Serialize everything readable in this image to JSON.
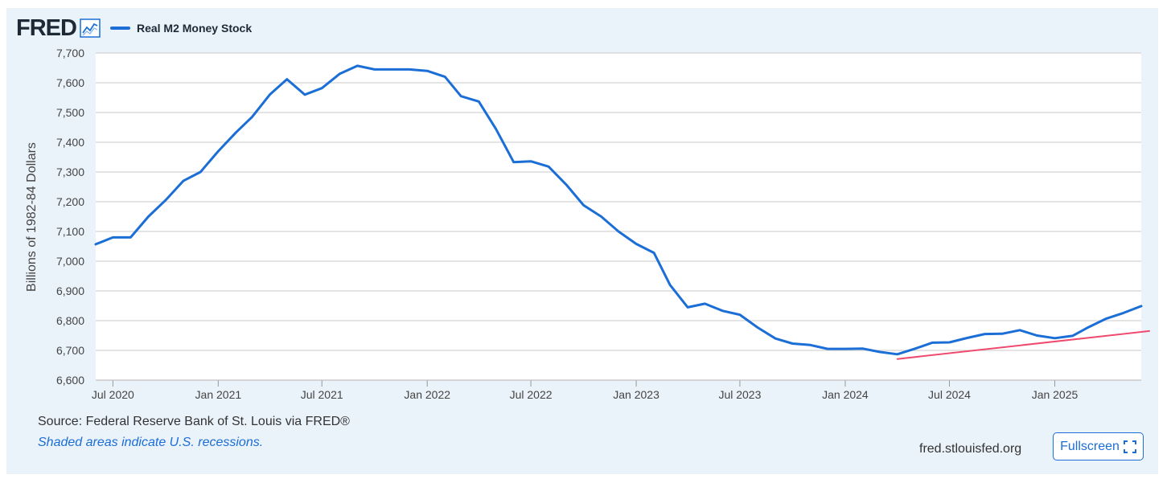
{
  "header": {
    "logo_text": "FRED",
    "logo_icon": "line-graph-icon",
    "legend": [
      {
        "label": "Real M2 Money Stock",
        "color": "#1b6ed6"
      }
    ]
  },
  "chart_data": {
    "type": "line",
    "title": "",
    "ylabel": "Billions of 1982-84 Dollars",
    "xlabel": "",
    "ylim": [
      6600,
      7700
    ],
    "xlim": [
      "2020-06-01",
      "2025-06-01"
    ],
    "yticks": [
      "6,600",
      "6,700",
      "6,800",
      "6,900",
      "7,000",
      "7,100",
      "7,200",
      "7,300",
      "7,400",
      "7,500",
      "7,600",
      "7,700"
    ],
    "xticks": [
      {
        "date": "2020-07-01",
        "label": "Jul 2020"
      },
      {
        "date": "2021-01-01",
        "label": "Jan 2021"
      },
      {
        "date": "2021-07-01",
        "label": "Jul 2021"
      },
      {
        "date": "2022-01-01",
        "label": "Jan 2022"
      },
      {
        "date": "2022-07-01",
        "label": "Jul 2022"
      },
      {
        "date": "2023-01-01",
        "label": "Jan 2023"
      },
      {
        "date": "2023-07-01",
        "label": "Jul 2023"
      },
      {
        "date": "2024-01-01",
        "label": "Jan 2024"
      },
      {
        "date": "2024-07-01",
        "label": "Jul 2024"
      },
      {
        "date": "2025-01-01",
        "label": "Jan 2025"
      }
    ],
    "grid": true,
    "legend_position": "top-left",
    "series": [
      {
        "name": "Real M2 Money Stock",
        "color": "#1b6ed6",
        "points": [
          [
            "2020-06-01",
            7057
          ],
          [
            "2020-07-01",
            7080
          ],
          [
            "2020-08-01",
            7080
          ],
          [
            "2020-09-01",
            7150
          ],
          [
            "2020-10-01",
            7205
          ],
          [
            "2020-11-01",
            7270
          ],
          [
            "2020-12-01",
            7300
          ],
          [
            "2021-01-01",
            7370
          ],
          [
            "2021-02-01",
            7433
          ],
          [
            "2021-03-01",
            7485
          ],
          [
            "2021-04-01",
            7560
          ],
          [
            "2021-05-01",
            7612
          ],
          [
            "2021-06-01",
            7560
          ],
          [
            "2021-07-01",
            7582
          ],
          [
            "2021-08-01",
            7630
          ],
          [
            "2021-09-01",
            7657
          ],
          [
            "2021-10-01",
            7645
          ],
          [
            "2021-11-01",
            7645
          ],
          [
            "2021-12-01",
            7645
          ],
          [
            "2022-01-01",
            7640
          ],
          [
            "2022-02-01",
            7620
          ],
          [
            "2022-03-01",
            7555
          ],
          [
            "2022-04-01",
            7537
          ],
          [
            "2022-05-01",
            7445
          ],
          [
            "2022-06-01",
            7333
          ],
          [
            "2022-07-01",
            7336
          ],
          [
            "2022-08-01",
            7318
          ],
          [
            "2022-09-01",
            7257
          ],
          [
            "2022-10-01",
            7188
          ],
          [
            "2022-11-01",
            7150
          ],
          [
            "2022-12-01",
            7100
          ],
          [
            "2023-01-01",
            7058
          ],
          [
            "2023-02-01",
            7028
          ],
          [
            "2023-03-01",
            6920
          ],
          [
            "2023-04-01",
            6845
          ],
          [
            "2023-05-01",
            6857
          ],
          [
            "2023-06-01",
            6833
          ],
          [
            "2023-07-01",
            6820
          ],
          [
            "2023-08-01",
            6777
          ],
          [
            "2023-09-01",
            6740
          ],
          [
            "2023-10-01",
            6723
          ],
          [
            "2023-11-01",
            6718
          ],
          [
            "2023-12-01",
            6705
          ],
          [
            "2024-01-01",
            6705
          ],
          [
            "2024-02-01",
            6706
          ],
          [
            "2024-03-01",
            6695
          ],
          [
            "2024-04-01",
            6687
          ],
          [
            "2024-05-01",
            6705
          ],
          [
            "2024-06-01",
            6726
          ],
          [
            "2024-07-01",
            6727
          ],
          [
            "2024-08-01",
            6742
          ],
          [
            "2024-09-01",
            6755
          ],
          [
            "2024-10-01",
            6756
          ],
          [
            "2024-11-01",
            6768
          ],
          [
            "2024-12-01",
            6750
          ],
          [
            "2025-01-01",
            6741
          ],
          [
            "2025-02-01",
            6749
          ],
          [
            "2025-03-01",
            6778
          ],
          [
            "2025-04-01",
            6807
          ],
          [
            "2025-05-01",
            6826
          ],
          [
            "2025-06-01",
            6849
          ]
        ]
      },
      {
        "color": "#f04a6e",
        "points": [
          [
            "2024-04-01",
            6671
          ],
          [
            "2025-06-15",
            6765
          ]
        ]
      }
    ]
  },
  "footer": {
    "source": "Source: Federal Reserve Bank of St. Louis via FRED®",
    "recession_note": "Shaded areas indicate U.S. recessions.",
    "site": "fred.stlouisfed.org",
    "fullscreen_label": "Fullscreen",
    "fullscreen_icon": "expand-icon"
  }
}
